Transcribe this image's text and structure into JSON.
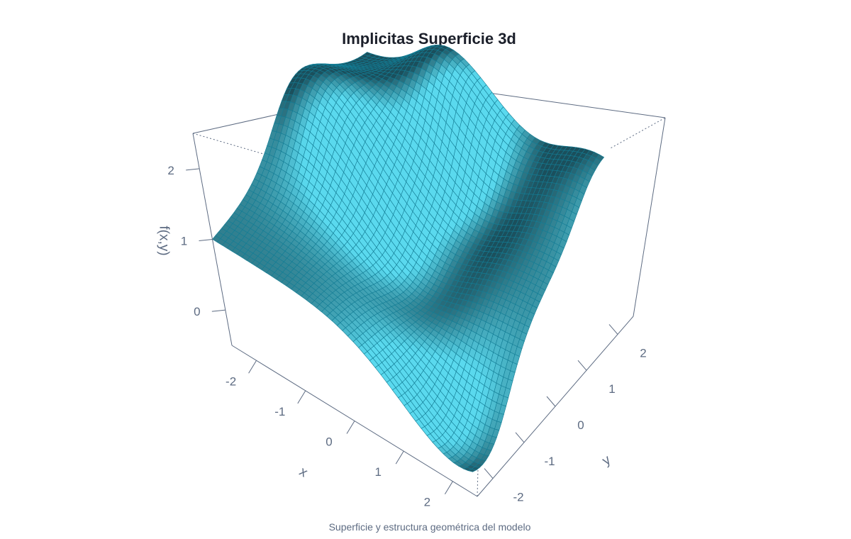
{
  "chart_data": {
    "type": "surface",
    "title": "Implicitas Superficie 3d",
    "caption": "Superficie y estructura geométrica del modelo",
    "xlabel": "x",
    "ylabel": "y",
    "zlabel": "f(x,y)",
    "xlim": [
      -2.5,
      2.5
    ],
    "ylim": [
      -2.5,
      2.5
    ],
    "zlim": [
      -0.5,
      2.5
    ],
    "x_ticks": [
      "-2",
      "-1",
      "0",
      "1",
      "2"
    ],
    "y_ticks": [
      "-2",
      "-1",
      "0",
      "1",
      "2"
    ],
    "z_ticks": [
      "0",
      "1",
      "2"
    ],
    "grid_size": 50,
    "colors": {
      "surface_light": "#5ad9ee",
      "surface_dark": "#1b4f5c",
      "mesh": "#137d95",
      "box": "#5d6b82"
    }
  }
}
